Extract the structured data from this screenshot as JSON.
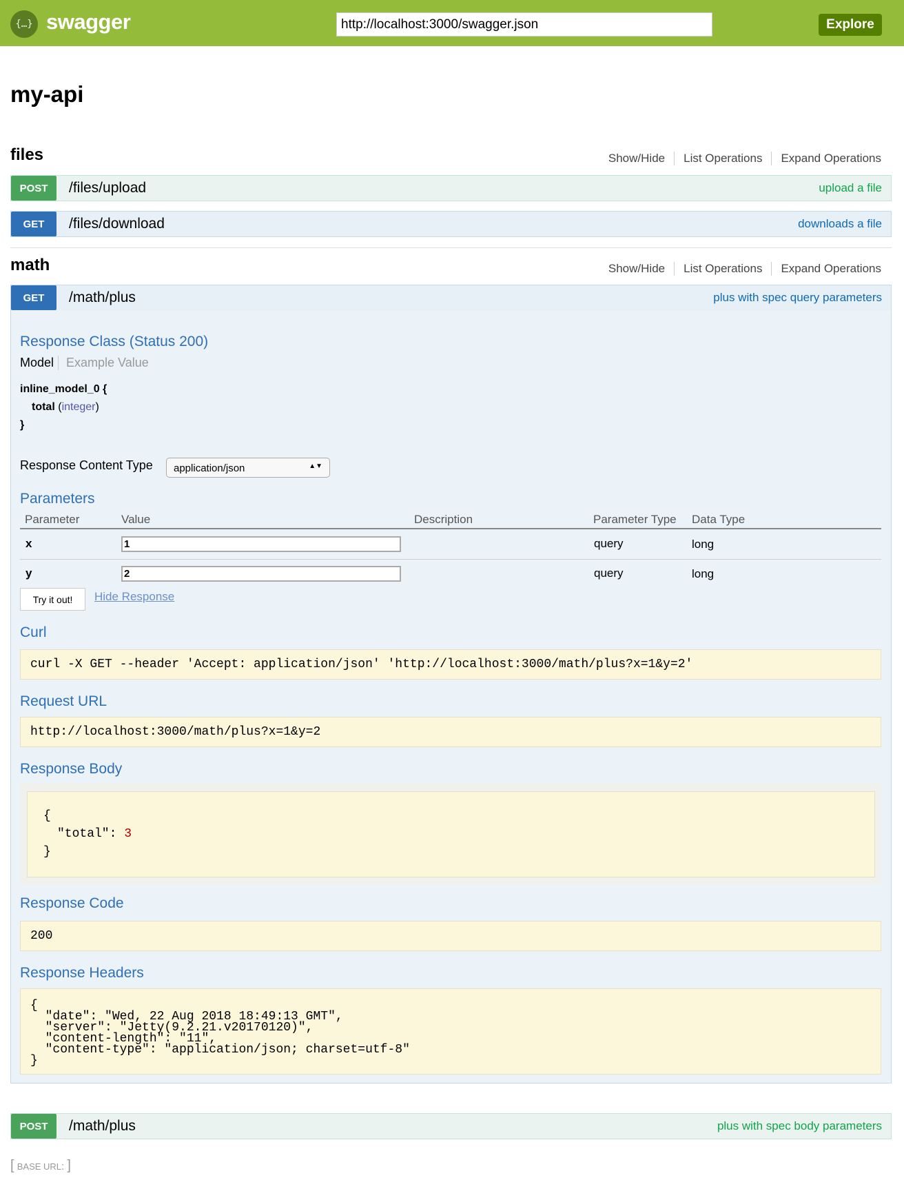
{
  "header": {
    "logo_text": "swagger",
    "logo_glyph": "{…}",
    "url": "http://localhost:3000/swagger.json",
    "explore_label": "Explore"
  },
  "title": "my-api",
  "links": {
    "show_hide": "Show/Hide",
    "list": "List Operations",
    "expand": "Expand Operations"
  },
  "sections": [
    {
      "name": "files",
      "operations": [
        {
          "method": "POST",
          "path": "/files/upload",
          "summary": "upload a file"
        },
        {
          "method": "GET",
          "path": "/files/download",
          "summary": "downloads a file"
        }
      ]
    },
    {
      "name": "math",
      "operations": [
        {
          "method": "GET",
          "path": "/math/plus",
          "summary": "plus with spec query parameters"
        },
        {
          "method": "POST",
          "path": "/math/plus",
          "summary": "plus with spec body parameters"
        }
      ]
    }
  ],
  "details": {
    "response_class": "Response Class (Status 200)",
    "model_tab": "Model",
    "example_tab": "Example Value",
    "model_name": "inline_model_0 {",
    "model_field": "total",
    "model_type": "integer",
    "model_close": "}",
    "content_type_label": "Response Content Type",
    "content_type": "application/json",
    "parameters_title": "Parameters",
    "columns": [
      "Parameter",
      "Value",
      "Description",
      "Parameter Type",
      "Data Type"
    ],
    "params": [
      {
        "name": "x",
        "value": "1",
        "type": "query",
        "data_type": "long"
      },
      {
        "name": "y",
        "value": "2",
        "type": "query",
        "data_type": "long"
      }
    ],
    "try_label": "Try it out!",
    "hide_label": "Hide Response",
    "curl_title": "Curl",
    "curl": "curl -X GET --header 'Accept: application/json' 'http://localhost:3000/math/plus?x=1&y=2'",
    "request_url_title": "Request URL",
    "request_url": "http://localhost:3000/math/plus?x=1&y=2",
    "response_body_title": "Response Body",
    "body_open": "{",
    "body_key": "\"total\": ",
    "body_value": "3",
    "body_close": "}",
    "response_code_title": "Response Code",
    "response_code": "200",
    "response_headers_title": "Response Headers",
    "headers": "{\n  \"date\": \"Wed, 22 Aug 2018 18:49:13 GMT\",\n  \"server\": \"Jetty(9.2.21.v20170120)\",\n  \"content-length\": \"11\",\n  \"content-type\": \"application/json; charset=utf-8\"\n}"
  },
  "base_url": {
    "label": "BASE URL",
    "value": ""
  }
}
